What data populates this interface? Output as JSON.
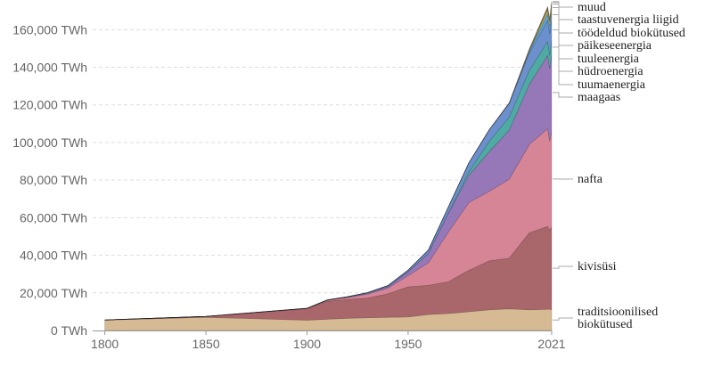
{
  "chart_data": {
    "type": "area",
    "stacked": true,
    "title": "",
    "xlabel": "",
    "ylabel": "",
    "unit_suffix": " TWh",
    "xlim": [
      1794,
      2021
    ],
    "ylim": [
      0,
      172000
    ],
    "y_ticks": [
      0,
      20000,
      40000,
      60000,
      80000,
      100000,
      120000,
      140000,
      160000
    ],
    "y_tick_labels": [
      "0 TWh",
      "20,000 TWh",
      "40,000 TWh",
      "60,000 TWh",
      "80,000 TWh",
      "100,000 TWh",
      "120,000 TWh",
      "140,000 TWh",
      "160,000 TWh"
    ],
    "x_ticks": [
      1800,
      1850,
      1900,
      1950,
      2021
    ],
    "x_tick_labels": [
      "1800",
      "1850",
      "1900",
      "1950",
      "2021"
    ],
    "grid": true,
    "x": [
      1800,
      1850,
      1900,
      1910,
      1920,
      1930,
      1940,
      1950,
      1960,
      1970,
      1980,
      1990,
      2000,
      2010,
      2019,
      2020,
      2021
    ],
    "series": [
      {
        "name": "traditsioonilised biokütused",
        "color": "#d3b48a",
        "values": [
          5500,
          7000,
          5500,
          6000,
          6500,
          6800,
          7000,
          7200,
          8500,
          9000,
          10000,
          11000,
          11500,
          11000,
          11300,
          11300,
          11100
        ]
      },
      {
        "name": "kivisüsi",
        "color": "#a35a5e",
        "values": [
          100,
          500,
          6000,
          9500,
          10000,
          10500,
          12500,
          16000,
          15500,
          17000,
          22000,
          26000,
          27000,
          41000,
          44000,
          42000,
          44000
        ]
      },
      {
        "name": "nafta",
        "color": "#d27b8e",
        "values": [
          0,
          0,
          200,
          500,
          1000,
          2000,
          3000,
          6000,
          12000,
          26500,
          36000,
          37000,
          42000,
          47000,
          52000,
          47500,
          51000
        ]
      },
      {
        "name": "maagaas",
        "color": "#8d6bb2",
        "values": [
          0,
          0,
          100,
          200,
          300,
          500,
          800,
          2000,
          5000,
          10000,
          14500,
          21000,
          26000,
          32000,
          39000,
          38500,
          41000
        ]
      },
      {
        "name": "tuumaenergia",
        "color": "#3fa39a",
        "values": [
          0,
          0,
          0,
          0,
          0,
          0,
          0,
          0,
          0,
          200,
          1800,
          5500,
          7000,
          7500,
          7400,
          7100,
          7300
        ]
      },
      {
        "name": "hüdroenergia",
        "color": "#5f87c9",
        "values": [
          0,
          0,
          20,
          60,
          200,
          400,
          600,
          900,
          1800,
          3200,
          4800,
          6000,
          7300,
          9300,
          11200,
          11400,
          11200
        ]
      },
      {
        "name": "tuuleenergia",
        "color": "#4a9bd1",
        "values": [
          0,
          0,
          0,
          0,
          0,
          0,
          0,
          0,
          0,
          0,
          0,
          10,
          80,
          900,
          3700,
          4100,
          4800
        ]
      },
      {
        "name": "päikeseenergia",
        "color": "#e0b544",
        "values": [
          0,
          0,
          0,
          0,
          0,
          0,
          0,
          0,
          0,
          0,
          0,
          0,
          5,
          90,
          1800,
          2200,
          2700
        ]
      },
      {
        "name": "töödeldud biokütused",
        "color": "#6aab5a",
        "values": [
          0,
          0,
          0,
          0,
          0,
          0,
          0,
          0,
          0,
          0,
          30,
          100,
          150,
          700,
          1000,
          900,
          1000
        ]
      },
      {
        "name": "taastuvenergia liigid",
        "color": "#c25d3f",
        "values": [
          0,
          0,
          0,
          0,
          0,
          0,
          0,
          0,
          0,
          0,
          0,
          50,
          100,
          400,
          700,
          750,
          800
        ]
      },
      {
        "name": "muud",
        "color": "#7b7b7b",
        "values": [
          0,
          0,
          0,
          0,
          0,
          0,
          0,
          0,
          0,
          0,
          0,
          0,
          0,
          0,
          100,
          100,
          100
        ]
      }
    ],
    "legend_placement": "right, direct labels",
    "legend_lines": [
      [
        "muud"
      ],
      [
        "taastuvenergia liigid"
      ],
      [
        "töödeldud biokütused"
      ],
      [
        "päikeseenergia"
      ],
      [
        "tuuleenergia"
      ],
      [
        "hüdroenergia"
      ],
      [
        "tuumaenergia"
      ],
      [
        "maagaas"
      ],
      [
        "nafta"
      ],
      [
        "kivisüsi"
      ],
      [
        "traditsioonilised",
        "biokütused"
      ]
    ]
  }
}
